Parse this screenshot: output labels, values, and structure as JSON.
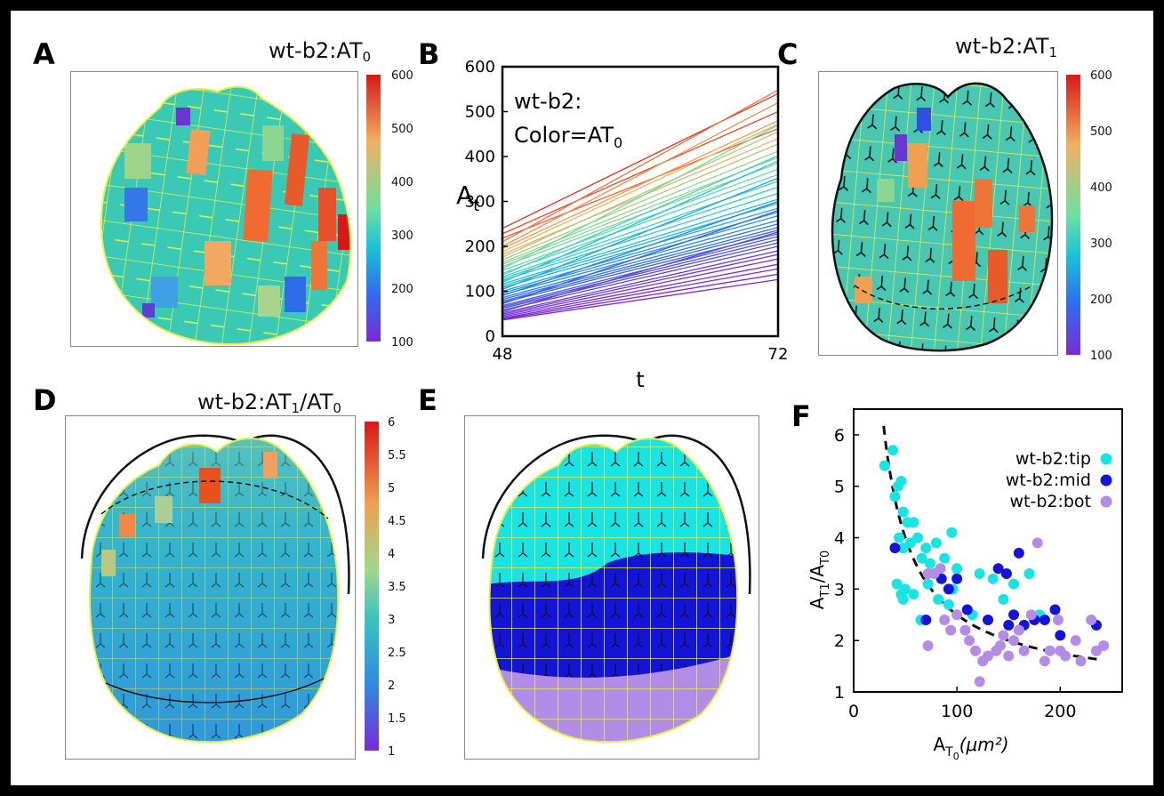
{
  "panels": {
    "A": {
      "letter": "A",
      "title_main": "wt-b2:AT",
      "title_sub": "0",
      "colorbar_labels": [
        "600",
        "500",
        "400",
        "300",
        "200",
        "100"
      ]
    },
    "B": {
      "letter": "B",
      "annotation_line1": "wt-b2:",
      "annotation_line2_main": "Color=AT",
      "annotation_line2_sub": "0"
    },
    "C": {
      "letter": "C",
      "title_main": "wt-b2:AT",
      "title_sub": "1",
      "colorbar_labels": [
        "600",
        "500",
        "400",
        "300",
        "200",
        "100"
      ]
    },
    "D": {
      "letter": "D",
      "title_main": "wt-b2:AT",
      "title_sub": "1",
      "title_main2": "/AT",
      "title_sub2": "0",
      "colorbar_labels": [
        "6",
        "5.5",
        "5",
        "4.5",
        "4",
        "3.5",
        "3",
        "2.5",
        "2",
        "1.5",
        "1"
      ]
    },
    "E": {
      "letter": "E"
    },
    "F": {
      "letter": "F"
    }
  },
  "chart_data": [
    {
      "id": "B",
      "type": "line",
      "title": "",
      "xlabel": "t",
      "ylabel_main": "A",
      "ylabel_sub": "t",
      "x": [
        48,
        72
      ],
      "xticks": [
        "48",
        "72"
      ],
      "ylim": [
        0,
        600
      ],
      "yticks": [
        "0",
        "100",
        "200",
        "300",
        "400",
        "500",
        "600"
      ],
      "color_scale": {
        "min": 100,
        "max": 600,
        "colors": [
          "#7a2bd6",
          "#2f6cf0",
          "#19c2d6",
          "#6fe0a0",
          "#f0b060",
          "#e84a2a",
          "#d01818"
        ]
      },
      "series": [
        {
          "start": 240,
          "end": 540
        },
        {
          "start": 228,
          "end": 500
        },
        {
          "start": 218,
          "end": 462
        },
        {
          "start": 210,
          "end": 548
        },
        {
          "start": 200,
          "end": 520
        },
        {
          "start": 195,
          "end": 480
        },
        {
          "start": 188,
          "end": 472
        },
        {
          "start": 182,
          "end": 440
        },
        {
          "start": 176,
          "end": 455
        },
        {
          "start": 170,
          "end": 428
        },
        {
          "start": 164,
          "end": 412
        },
        {
          "start": 160,
          "end": 398
        },
        {
          "start": 155,
          "end": 385
        },
        {
          "start": 150,
          "end": 470
        },
        {
          "start": 146,
          "end": 372
        },
        {
          "start": 140,
          "end": 360
        },
        {
          "start": 136,
          "end": 402
        },
        {
          "start": 132,
          "end": 345
        },
        {
          "start": 128,
          "end": 332
        },
        {
          "start": 124,
          "end": 318
        },
        {
          "start": 120,
          "end": 390
        },
        {
          "start": 116,
          "end": 305
        },
        {
          "start": 112,
          "end": 296
        },
        {
          "start": 108,
          "end": 285
        },
        {
          "start": 104,
          "end": 352
        },
        {
          "start": 100,
          "end": 276
        },
        {
          "start": 96,
          "end": 268
        },
        {
          "start": 92,
          "end": 258
        },
        {
          "start": 90,
          "end": 300
        },
        {
          "start": 86,
          "end": 250
        },
        {
          "start": 82,
          "end": 242
        },
        {
          "start": 78,
          "end": 236
        },
        {
          "start": 75,
          "end": 228
        },
        {
          "start": 72,
          "end": 280
        },
        {
          "start": 68,
          "end": 222
        },
        {
          "start": 65,
          "end": 215
        },
        {
          "start": 62,
          "end": 208
        },
        {
          "start": 58,
          "end": 200
        },
        {
          "start": 55,
          "end": 232
        },
        {
          "start": 52,
          "end": 190
        },
        {
          "start": 49,
          "end": 182
        },
        {
          "start": 46,
          "end": 172
        },
        {
          "start": 43,
          "end": 160
        },
        {
          "start": 40,
          "end": 150
        },
        {
          "start": 38,
          "end": 138
        },
        {
          "start": 36,
          "end": 126
        }
      ]
    },
    {
      "id": "F",
      "type": "scatter",
      "title": "",
      "xlabel_main": "A",
      "xlabel_sub": "T",
      "xlabel_subsub": "0",
      "xlabel_units": "(µm²)",
      "xlabel_text": "(μm²)",
      "ylabel": "AT1/AT0",
      "ylabel_num_main": "A",
      "ylabel_num_sub": "T1",
      "ylabel_den_main": "/A",
      "ylabel_den_sub": "T0",
      "xlim": [
        0,
        260
      ],
      "ylim": [
        1,
        6.5
      ],
      "xticks": [
        "0",
        "100",
        "200"
      ],
      "xtick_values": [
        0,
        100,
        200
      ],
      "yticks": [
        "1",
        "2",
        "3",
        "4",
        "5",
        "6"
      ],
      "ytick_values": [
        1,
        2,
        3,
        4,
        5,
        6
      ],
      "legend_position": "top-right",
      "fit_curve": "dashed black, y = 1 + 150/x",
      "series": [
        {
          "name": "wt-b2:tip",
          "color": "#19e4e4",
          "points": [
            [
              30,
              5.4
            ],
            [
              38,
              5.7
            ],
            [
              40,
              4.8
            ],
            [
              43,
              5.0
            ],
            [
              46,
              5.1
            ],
            [
              48,
              4.5
            ],
            [
              52,
              4.3
            ],
            [
              44,
              4.0
            ],
            [
              48,
              3.8
            ],
            [
              55,
              3.9
            ],
            [
              58,
              4.3
            ],
            [
              62,
              4.0
            ],
            [
              66,
              3.6
            ],
            [
              70,
              3.8
            ],
            [
              74,
              3.5
            ],
            [
              78,
              3.3
            ],
            [
              80,
              3.9
            ],
            [
              88,
              3.6
            ],
            [
              95,
              4.1
            ],
            [
              100,
              3.4
            ],
            [
              72,
              3.1
            ],
            [
              42,
              3.1
            ],
            [
              46,
              2.9
            ],
            [
              50,
              3.0
            ],
            [
              58,
              2.9
            ],
            [
              65,
              2.4
            ],
            [
              82,
              2.8
            ],
            [
              96,
              3.0
            ],
            [
              115,
              2.5
            ],
            [
              122,
              3.3
            ],
            [
              135,
              3.2
            ],
            [
              145,
              2.8
            ],
            [
              155,
              3.1
            ],
            [
              170,
              3.3
            ],
            [
              180,
              2.5
            ],
            [
              48,
              2.8
            ],
            [
              92,
              2.7
            ]
          ]
        },
        {
          "name": "wt-b2:mid",
          "color": "#1414d8",
          "points": [
            [
              40,
              3.8
            ],
            [
              70,
              2.4
            ],
            [
              85,
              3.2
            ],
            [
              92,
              3.0
            ],
            [
              100,
              3.2
            ],
            [
              110,
              2.6
            ],
            [
              140,
              3.4
            ],
            [
              148,
              3.3
            ],
            [
              155,
              2.5
            ],
            [
              150,
              2.3
            ],
            [
              160,
              3.7
            ],
            [
              165,
              2.3
            ],
            [
              175,
              2.4
            ],
            [
              185,
              2.4
            ],
            [
              195,
              2.6
            ],
            [
              200,
              2.1
            ],
            [
              235,
              2.3
            ],
            [
              130,
              2.4
            ]
          ]
        },
        {
          "name": "wt-b2:bot",
          "color": "#b28ce6",
          "points": [
            [
              72,
              3.3
            ],
            [
              78,
              3.3
            ],
            [
              84,
              3.4
            ],
            [
              88,
              2.4
            ],
            [
              94,
              2.2
            ],
            [
              72,
              1.9
            ],
            [
              100,
              2.5
            ],
            [
              108,
              2.2
            ],
            [
              112,
              2.0
            ],
            [
              118,
              1.8
            ],
            [
              122,
              1.2
            ],
            [
              125,
              1.6
            ],
            [
              130,
              1.7
            ],
            [
              138,
              1.8
            ],
            [
              142,
              1.9
            ],
            [
              150,
              1.7
            ],
            [
              155,
              2.0
            ],
            [
              160,
              2.2
            ],
            [
              165,
              1.8
            ],
            [
              172,
              2.5
            ],
            [
              178,
              3.9
            ],
            [
              185,
              1.6
            ],
            [
              190,
              1.8
            ],
            [
              200,
              1.8
            ],
            [
              205,
              1.7
            ],
            [
              215,
              2.0
            ],
            [
              220,
              1.6
            ],
            [
              230,
              2.4
            ],
            [
              235,
              1.8
            ],
            [
              242,
              1.9
            ],
            [
              198,
              2.4
            ],
            [
              145,
              2.1
            ]
          ]
        }
      ]
    }
  ]
}
